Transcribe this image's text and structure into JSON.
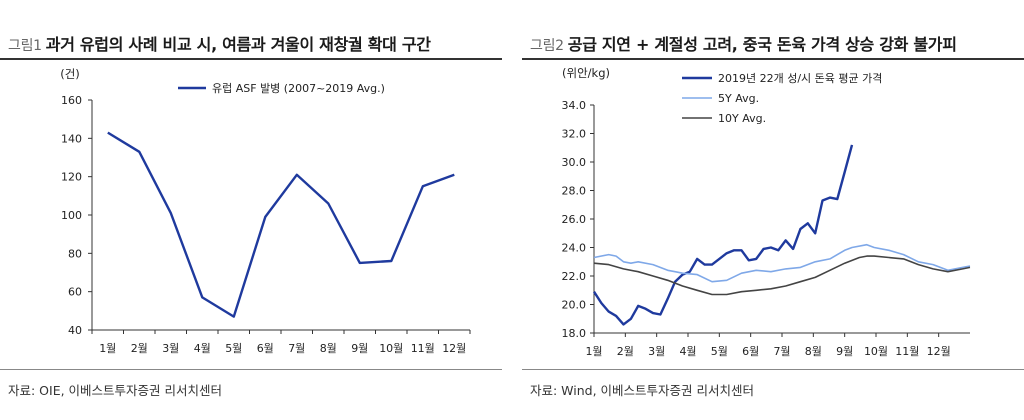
{
  "left": {
    "fig_num": "그림1",
    "title": "과거 유럽의 사례 비교 시, 여름과 겨울이 재창궐 확대 구간",
    "source": "자료: OIE, 이베스트투자증권 리서치센터",
    "colors": {
      "line": "#1f3a9e"
    }
  },
  "right": {
    "fig_num": "그림2",
    "title": "공급 지연 + 계절성 고려, 중국 돈육 가격 상승 강화 불가피",
    "source": "자료: Wind, 이베스트투자증권 리서치센터",
    "colors": {
      "s2019": "#1f3a9e",
      "s5y": "#7fa8e8",
      "s10y": "#444444"
    }
  },
  "chart_data": [
    {
      "type": "line",
      "title": "과거 유럽의 사례 비교 시, 여름과 겨울이 재창궐 확대 구간",
      "ylabel": "(건)",
      "xlabel": "",
      "ylim": [
        40,
        160
      ],
      "yticks": [
        40,
        60,
        80,
        100,
        120,
        140,
        160
      ],
      "categories": [
        "1월",
        "2월",
        "3월",
        "4월",
        "5월",
        "6월",
        "7월",
        "8월",
        "9월",
        "10월",
        "11월",
        "12월"
      ],
      "series": [
        {
          "name": "유럽 ASF 발병 (2007~2019 Avg.)",
          "values": [
            143,
            133,
            101,
            57,
            47,
            99,
            121,
            106,
            75,
            76,
            115,
            121
          ]
        }
      ],
      "legend": "top"
    },
    {
      "type": "line",
      "title": "공급 지연 + 계절성 고려, 중국 돈육 가격 상승 강화 불가피",
      "ylabel": "(위안/kg)",
      "xlabel": "",
      "ylim": [
        18.0,
        34.0
      ],
      "yticks": [
        "18.0",
        "20.0",
        "22.0",
        "24.0",
        "26.0",
        "28.0",
        "30.0",
        "32.0",
        "34.0"
      ],
      "categories": [
        "1월",
        "2월",
        "3월",
        "4월",
        "5월",
        "6월",
        "7월",
        "8월",
        "9월",
        "10월",
        "11월",
        "12월"
      ],
      "x_week_range": [
        0,
        51
      ],
      "series": [
        {
          "name": "2019년 22개 성/시 돈육 평균 가격",
          "x": [
            0,
            1,
            2,
            3,
            4,
            5,
            6,
            7,
            8,
            9,
            10,
            11,
            12,
            13,
            14,
            15,
            16,
            17,
            18,
            19,
            20,
            21,
            22,
            23,
            24,
            25,
            26,
            27,
            28,
            29,
            30,
            31,
            32,
            33,
            34,
            35
          ],
          "values": [
            20.9,
            20.1,
            19.5,
            19.2,
            18.6,
            19.0,
            19.9,
            19.7,
            19.4,
            19.3,
            20.4,
            21.6,
            22.1,
            22.3,
            23.2,
            22.8,
            22.8,
            23.2,
            23.6,
            23.8,
            23.8,
            23.1,
            23.2,
            23.9,
            24.0,
            23.8,
            24.5,
            23.9,
            25.3,
            25.7,
            25.0,
            27.3,
            27.5,
            27.4,
            29.3,
            31.2
          ]
        },
        {
          "name": "5Y Avg.",
          "x": [
            0,
            2,
            3,
            4,
            5,
            6,
            8,
            10,
            11,
            12,
            14,
            16,
            18,
            20,
            22,
            24,
            26,
            28,
            30,
            32,
            34,
            35,
            37,
            38,
            40,
            42,
            44,
            46,
            48,
            50,
            51
          ],
          "values": [
            23.3,
            23.5,
            23.4,
            23.0,
            22.9,
            23.0,
            22.8,
            22.4,
            22.3,
            22.2,
            22.1,
            21.6,
            21.7,
            22.2,
            22.4,
            22.3,
            22.5,
            22.6,
            23.0,
            23.2,
            23.8,
            24.0,
            24.2,
            24.0,
            23.8,
            23.5,
            23.0,
            22.8,
            22.4,
            22.6,
            22.7
          ]
        },
        {
          "name": "10Y Avg.",
          "x": [
            0,
            2,
            4,
            6,
            8,
            10,
            12,
            14,
            16,
            18,
            20,
            22,
            24,
            26,
            28,
            30,
            32,
            34,
            36,
            37,
            38,
            40,
            42,
            44,
            46,
            48,
            50,
            51
          ],
          "values": [
            22.9,
            22.8,
            22.5,
            22.3,
            22.0,
            21.7,
            21.3,
            21.0,
            20.7,
            20.7,
            20.9,
            21.0,
            21.1,
            21.3,
            21.6,
            21.9,
            22.4,
            22.9,
            23.3,
            23.4,
            23.4,
            23.3,
            23.2,
            22.8,
            22.5,
            22.3,
            22.5,
            22.6
          ]
        }
      ],
      "legend": "top-left"
    }
  ]
}
